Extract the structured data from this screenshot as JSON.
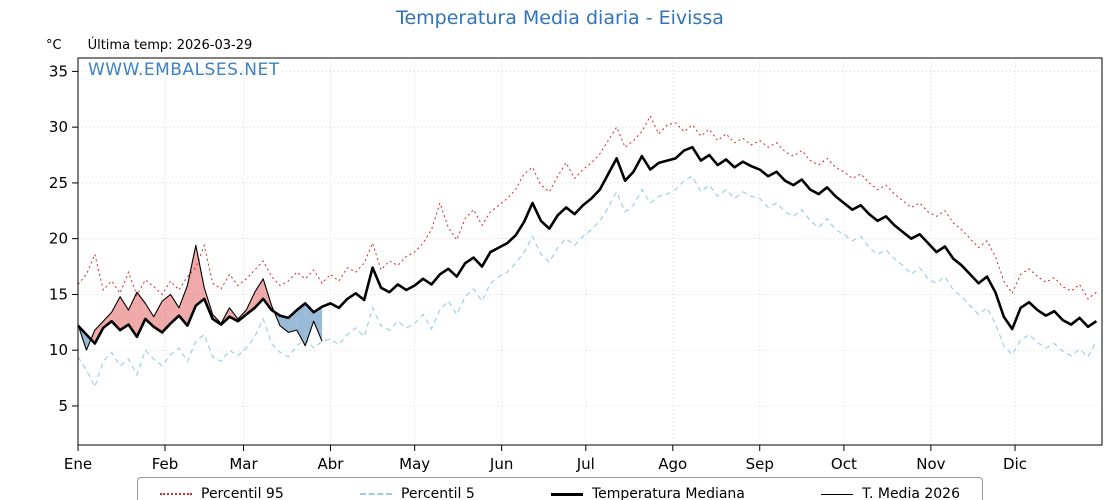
{
  "title": "Temperatura Media diaria - Eivissa",
  "watermark": "WWW.EMBALSES.NET",
  "header": {
    "unit": "°C",
    "last_temp": "Última temp: 2026-03-29"
  },
  "legend": [
    {
      "label": "Percentil 95",
      "style": "dotted",
      "color": "#d62728",
      "width": 2
    },
    {
      "label": "Percentil 5",
      "style": "dashed",
      "color": "#9fcfe4",
      "width": 2
    },
    {
      "label": "Temperatura Mediana",
      "style": "solid",
      "color": "#000000",
      "width": 3
    },
    {
      "label": "T. Media 2026",
      "style": "solid",
      "color": "#000000",
      "width": 1
    }
  ],
  "chart_data": {
    "type": "line",
    "title": "Temperatura Media diaria - Eivissa",
    "xlabel": "",
    "ylabel": "°C",
    "ylim": [
      1.5,
      36.2
    ],
    "y_ticks": [
      5,
      10,
      15,
      20,
      25,
      30,
      35
    ],
    "x_unit": "day_of_year",
    "days_in_year": 365,
    "x_step_days": 3,
    "x_tick_labels": [
      "Ene",
      "Feb",
      "Mar",
      "Abr",
      "May",
      "Jun",
      "Jul",
      "Ago",
      "Sep",
      "Oct",
      "Nov",
      "Dic"
    ],
    "month_start_days": [
      0,
      31,
      59,
      90,
      120,
      151,
      181,
      212,
      243,
      273,
      304,
      334
    ],
    "grid": true,
    "legend_position": "bottom",
    "colors": {
      "p95": "#d62728",
      "p5": "#9fcfe4",
      "median": "#000000",
      "t2026": "#000000",
      "fill_above": "rgba(214,39,40,0.40)",
      "fill_below": "rgba(70,130,180,0.55)",
      "grid": "#d8d8d8",
      "title": "#3273b8"
    },
    "series": [
      {
        "name": "Percentil 95",
        "values": [
          15.9,
          16.8,
          18.6,
          15.4,
          16.2,
          15.1,
          17.0,
          14.9,
          16.3,
          15.7,
          15.0,
          16.2,
          15.4,
          16.6,
          17.4,
          19.4,
          16.0,
          15.5,
          16.8,
          15.8,
          16.4,
          17.2,
          18.0,
          16.6,
          15.8,
          16.2,
          17.0,
          16.4,
          17.2,
          16.0,
          16.8,
          16.2,
          17.4,
          17.0,
          17.8,
          19.6,
          17.2,
          18.0,
          17.6,
          18.4,
          18.8,
          19.6,
          20.8,
          23.2,
          21.0,
          19.9,
          21.8,
          22.6,
          21.2,
          22.4,
          23.0,
          23.6,
          24.4,
          25.8,
          26.4,
          24.8,
          24.2,
          25.6,
          26.8,
          25.4,
          26.2,
          26.8,
          27.6,
          28.8,
          30.0,
          28.2,
          28.8,
          29.6,
          31.0,
          29.4,
          30.2,
          30.4,
          29.6,
          30.2,
          29.2,
          29.8,
          28.8,
          29.4,
          28.6,
          29.0,
          28.4,
          28.8,
          28.2,
          28.6,
          27.8,
          27.4,
          27.9,
          27.0,
          26.6,
          27.2,
          26.4,
          26.0,
          25.4,
          25.8,
          25.0,
          24.4,
          24.8,
          24.0,
          23.4,
          22.8,
          23.2,
          22.4,
          22.0,
          22.5,
          21.4,
          20.8,
          20.0,
          19.2,
          19.8,
          18.4,
          16.2,
          15.1,
          16.8,
          17.3,
          16.6,
          16.1,
          16.5,
          15.7,
          15.3,
          15.9,
          14.6,
          15.2
        ]
      },
      {
        "name": "Percentil 5",
        "values": [
          9.4,
          8.2,
          6.7,
          9.0,
          9.8,
          8.6,
          9.2,
          7.8,
          10.0,
          9.2,
          8.6,
          9.6,
          10.2,
          9.0,
          10.8,
          11.4,
          9.4,
          9.0,
          10.0,
          9.5,
          10.2,
          11.2,
          12.8,
          10.6,
          9.8,
          9.4,
          10.4,
          11.0,
          10.2,
          10.8,
          11.0,
          10.5,
          11.4,
          12.0,
          11.2,
          13.8,
          12.2,
          11.8,
          12.6,
          12.0,
          12.4,
          13.2,
          11.9,
          13.6,
          14.4,
          13.2,
          14.8,
          15.5,
          14.4,
          16.0,
          16.6,
          17.0,
          17.8,
          18.8,
          20.2,
          18.6,
          17.9,
          19.2,
          20.0,
          19.4,
          20.2,
          20.8,
          21.6,
          22.8,
          24.2,
          22.4,
          23.0,
          24.4,
          23.2,
          23.8,
          24.0,
          24.4,
          25.2,
          25.6,
          24.2,
          24.8,
          23.8,
          24.4,
          23.6,
          24.2,
          23.8,
          23.6,
          22.8,
          23.2,
          22.4,
          22.0,
          22.6,
          21.6,
          21.0,
          21.8,
          20.8,
          20.4,
          19.8,
          20.2,
          19.2,
          18.6,
          19.0,
          18.2,
          17.6,
          16.8,
          17.4,
          16.4,
          16.0,
          16.6,
          15.4,
          14.8,
          14.0,
          13.2,
          13.8,
          12.4,
          10.4,
          9.6,
          10.9,
          11.4,
          10.7,
          10.2,
          10.6,
          9.9,
          9.5,
          10.1,
          9.4,
          10.8
        ]
      },
      {
        "name": "Temperatura Mediana",
        "values": [
          12.2,
          11.4,
          10.6,
          12.0,
          12.6,
          11.8,
          12.3,
          11.2,
          12.8,
          12.1,
          11.6,
          12.4,
          13.1,
          12.2,
          14.0,
          14.6,
          12.8,
          12.3,
          13.0,
          12.6,
          13.2,
          13.8,
          14.6,
          13.6,
          13.1,
          12.9,
          13.6,
          14.2,
          13.4,
          13.9,
          14.2,
          13.8,
          14.6,
          15.1,
          14.5,
          17.4,
          15.6,
          15.2,
          15.9,
          15.4,
          15.8,
          16.4,
          15.9,
          16.8,
          17.3,
          16.6,
          17.8,
          18.3,
          17.5,
          18.8,
          19.2,
          19.6,
          20.3,
          21.5,
          23.2,
          21.6,
          20.9,
          22.1,
          22.8,
          22.2,
          23.0,
          23.6,
          24.4,
          25.8,
          27.2,
          25.2,
          26.0,
          27.4,
          26.2,
          26.8,
          27.0,
          27.2,
          27.9,
          28.2,
          27.0,
          27.5,
          26.6,
          27.1,
          26.4,
          26.9,
          26.5,
          26.2,
          25.6,
          26.0,
          25.2,
          24.8,
          25.3,
          24.4,
          24.0,
          24.6,
          23.8,
          23.2,
          22.6,
          23.0,
          22.2,
          21.6,
          22.0,
          21.2,
          20.6,
          20.0,
          20.4,
          19.6,
          18.8,
          19.3,
          18.2,
          17.6,
          16.8,
          16.0,
          16.6,
          15.2,
          13.0,
          11.9,
          13.8,
          14.3,
          13.6,
          13.1,
          13.5,
          12.7,
          12.3,
          12.9,
          12.1,
          12.6
        ]
      },
      {
        "name": "T. Media 2026",
        "values": [
          12.3,
          10.0,
          11.8,
          12.6,
          13.4,
          14.8,
          13.6,
          15.2,
          14.2,
          13.0,
          14.4,
          15.0,
          13.8,
          15.8,
          19.4,
          15.6,
          13.2,
          12.4,
          13.8,
          12.8,
          13.6,
          15.2,
          16.4,
          14.0,
          12.2,
          11.6,
          11.8,
          10.4,
          12.6,
          10.8
        ]
      }
    ]
  }
}
